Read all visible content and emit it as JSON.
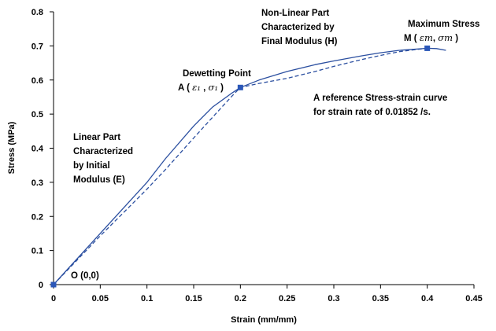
{
  "chart_data": {
    "type": "line",
    "title": "",
    "xlabel": "Strain (mm/mm)",
    "ylabel": "Stress (MPa)",
    "xlim": [
      0,
      0.45
    ],
    "ylim": [
      0,
      0.8
    ],
    "x_ticks": [
      "0",
      "0.05",
      "0.1",
      "0.15",
      "0.2",
      "0.25",
      "0.3",
      "0.35",
      "0.4",
      "0.45"
    ],
    "y_ticks": [
      "0",
      "0.1",
      "0.2",
      "0.3",
      "0.4",
      "0.5",
      "0.6",
      "0.7",
      "0.8"
    ],
    "grid": false,
    "legend": "none",
    "line_color": "#2b4fa0",
    "marker_color": "#2b57b8",
    "series": [
      {
        "style": "solid",
        "x": [
          0,
          0.02,
          0.05,
          0.08,
          0.1,
          0.12,
          0.15,
          0.17,
          0.19,
          0.2,
          0.22,
          0.25,
          0.28,
          0.3,
          0.33,
          0.35,
          0.37,
          0.39,
          0.4,
          0.41,
          0.42
        ],
        "y": [
          0,
          0.06,
          0.15,
          0.24,
          0.3,
          0.37,
          0.465,
          0.52,
          0.56,
          0.578,
          0.6,
          0.625,
          0.645,
          0.656,
          0.671,
          0.68,
          0.687,
          0.691,
          0.693,
          0.692,
          0.687
        ]
      },
      {
        "style": "dashed",
        "x": [
          0,
          0.02,
          0.05,
          0.08,
          0.1,
          0.12,
          0.15,
          0.17,
          0.19,
          0.2,
          0.22,
          0.25,
          0.28,
          0.3,
          0.33,
          0.35,
          0.37,
          0.39,
          0.4
        ],
        "y": [
          0,
          0.057,
          0.143,
          0.225,
          0.28,
          0.338,
          0.43,
          0.49,
          0.55,
          0.578,
          0.59,
          0.605,
          0.625,
          0.64,
          0.66,
          0.672,
          0.683,
          0.69,
          0.693
        ]
      }
    ],
    "points": [
      {
        "x": 0,
        "y": 0,
        "label": "O (0,0)"
      },
      {
        "x": 0.2,
        "y": 0.578
      },
      {
        "x": 0.4,
        "y": 0.693
      }
    ],
    "annotations": {
      "linear_lines": [
        "Linear Part",
        "Characterized",
        "by Initial",
        "Modulus (E)"
      ],
      "nonlinear_lines": [
        "Non-Linear Part",
        "Characterized by",
        "Final Modulus (H)"
      ],
      "dewetting_title": "Dewetting Point",
      "dewetting_prefix": "A ( ",
      "dewetting_eps": "ε₁",
      "dewetting_sep": " , ",
      "dewetting_sig": "σ₁",
      "dewetting_suffix": " )",
      "maxstress_title": "Maximum Stress",
      "maxstress_prefix": "M ( ",
      "maxstress_eps": "εm",
      "maxstress_sep": ", ",
      "maxstress_sig": "σm",
      "maxstress_suffix": " )",
      "reference_lines": [
        "A reference Stress-strain curve",
        "for strain rate of  0.01852 /s."
      ]
    }
  }
}
